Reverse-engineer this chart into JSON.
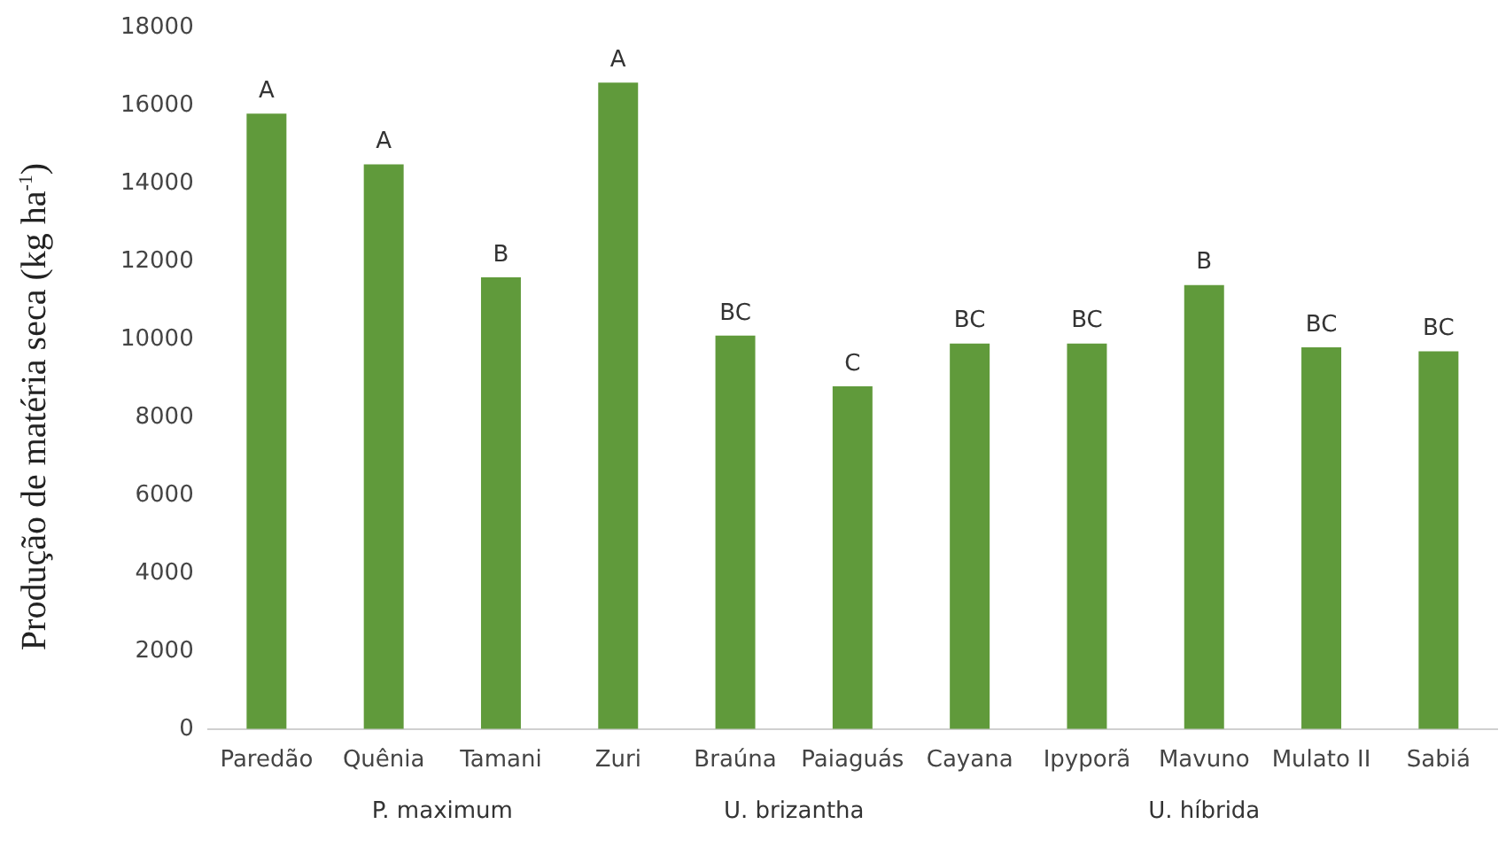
{
  "chart_data": {
    "type": "bar",
    "ylabel": "Produção de matéria seca (kg ha$^{-1}$)",
    "categories": [
      "Paredão",
      "Quênia",
      "Tamani",
      "Zuri",
      "Braúna",
      "Paiaguás",
      "Cayana",
      "Ipyporã",
      "Mavuno",
      "Mulato II",
      "Sabiá"
    ],
    "values": [
      15800,
      14500,
      11600,
      16600,
      10100,
      8800,
      9900,
      9900,
      11400,
      9800,
      9700
    ],
    "value_labels": [
      "A",
      "A",
      "B",
      "A",
      "BC",
      "C",
      "BC",
      "BC",
      "B",
      "BC",
      "BC"
    ],
    "color": "#609a3b",
    "ylim": [
      0,
      18000
    ],
    "yticks": [
      0,
      2000,
      4000,
      6000,
      8000,
      10000,
      12000,
      14000,
      16000,
      18000
    ],
    "grid": false,
    "legend": false,
    "annotations": [
      "P. maximum",
      "U. brizantha",
      "U. híbrida"
    ]
  }
}
